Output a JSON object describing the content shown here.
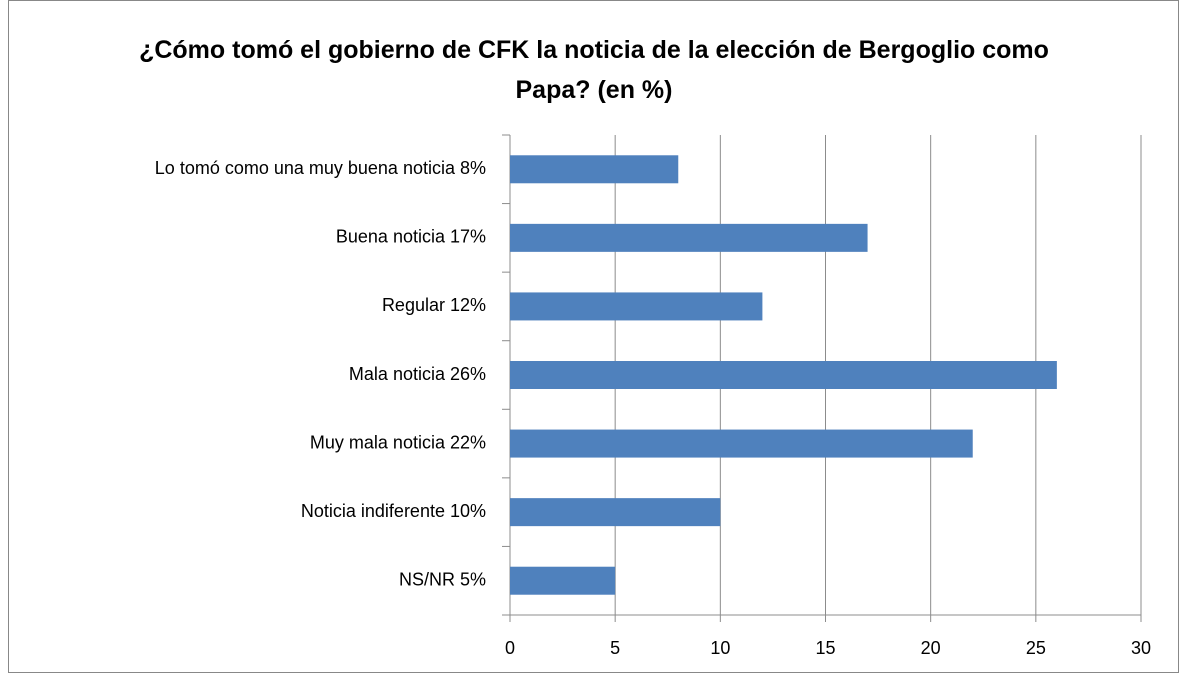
{
  "chart_data": {
    "type": "bar",
    "orientation": "horizontal",
    "title": "¿Cómo tomó el gobierno de CFK la noticia de la elección de Bergoglio como Papa? (en %)",
    "categories": [
      "Lo tomó como una muy buena noticia   8%",
      "Buena noticia   17%",
      "Regular  12%",
      "Mala noticia   26%",
      "Muy mala noticia  22%",
      "Noticia indiferente   10%",
      "NS/NR  5%"
    ],
    "values": [
      8,
      17,
      12,
      26,
      22,
      10,
      5
    ],
    "color": "#4f81bd",
    "xlim": [
      0,
      30
    ],
    "xticks": [
      0,
      5,
      10,
      15,
      20,
      25,
      30
    ],
    "grid": true
  }
}
